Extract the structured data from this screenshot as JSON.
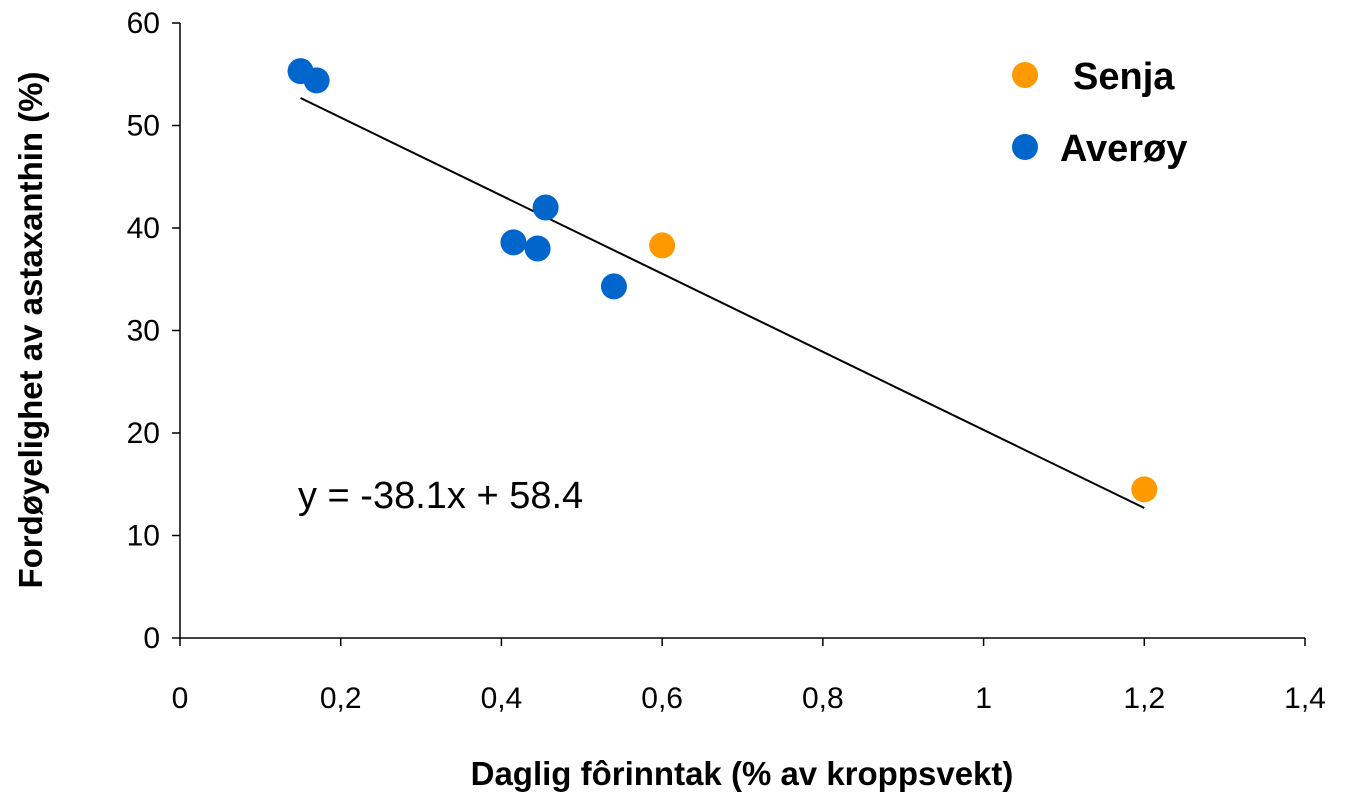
{
  "chart_data": {
    "type": "scatter",
    "title": "",
    "xlabel": "Daglig fôrinntak (% av kroppsvekt)",
    "ylabel": "Fordøyelighet av astaxanthin (%)",
    "xlim": [
      0,
      1.4
    ],
    "ylim": [
      0,
      60
    ],
    "x_ticks": [
      "0",
      "0,2",
      "0,4",
      "0,6",
      "0,8",
      "1",
      "1,2",
      "1,4"
    ],
    "y_ticks": [
      "0",
      "10",
      "20",
      "30",
      "40",
      "50",
      "60"
    ],
    "grid": false,
    "legend_position": "top-right",
    "series": [
      {
        "name": "Senja",
        "color": "#ff9900",
        "points": [
          {
            "x": 0.6,
            "y": 38.3
          },
          {
            "x": 1.2,
            "y": 14.5
          }
        ]
      },
      {
        "name": "Averøy",
        "color": "#0066cc",
        "points": [
          {
            "x": 0.15,
            "y": 55.3
          },
          {
            "x": 0.17,
            "y": 54.4
          },
          {
            "x": 0.415,
            "y": 38.6
          },
          {
            "x": 0.445,
            "y": 38.0
          },
          {
            "x": 0.455,
            "y": 42.0
          },
          {
            "x": 0.54,
            "y": 34.3
          }
        ]
      }
    ],
    "trendline": {
      "slope": -38.1,
      "intercept": 58.4,
      "x_range": [
        0.15,
        1.2
      ],
      "equation_label": "y = -38.1x + 58.4"
    }
  }
}
